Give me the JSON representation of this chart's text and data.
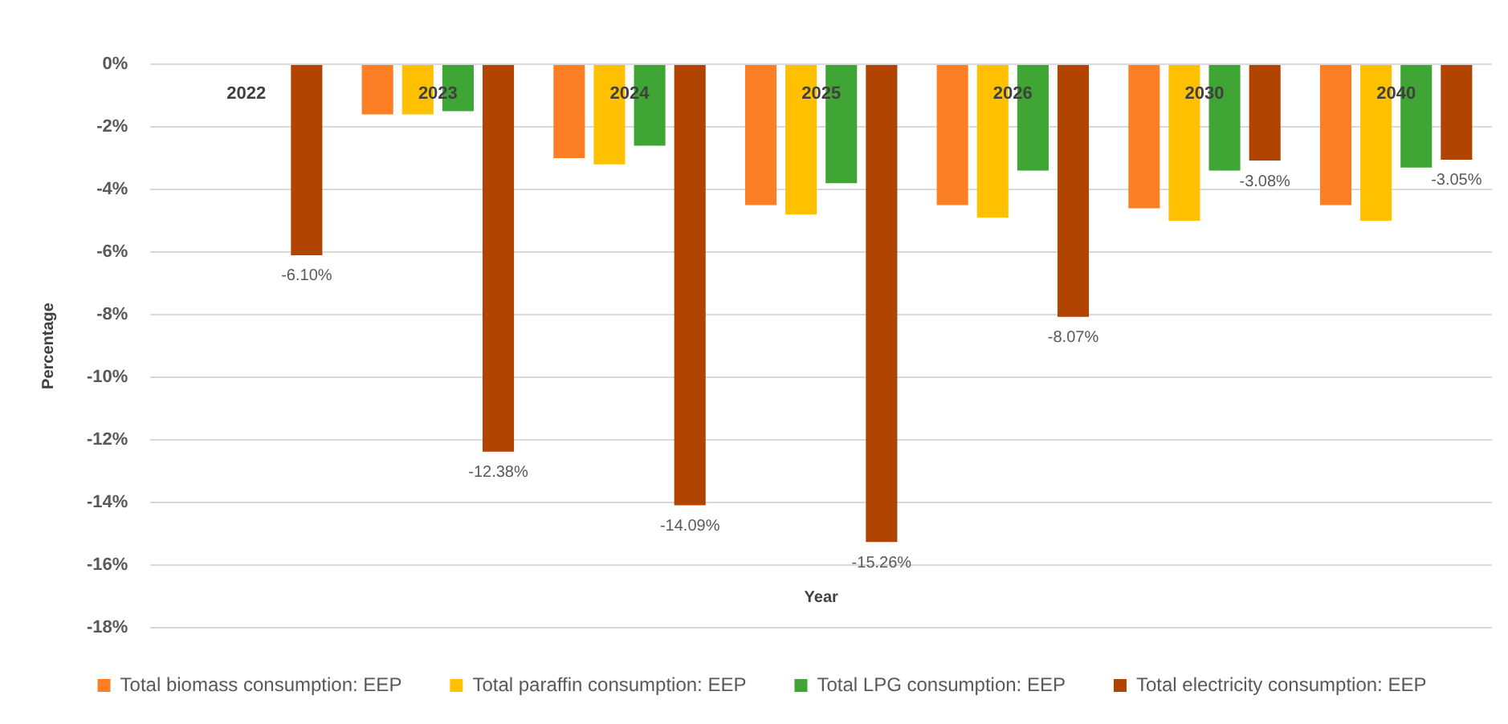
{
  "chart_data": {
    "type": "bar",
    "xlabel": "Year",
    "ylabel": "Percentage",
    "categories": [
      "2022",
      "2023",
      "2024",
      "2025",
      "2026",
      "2030",
      "2040"
    ],
    "series": [
      {
        "name": "Total biomass consumption: EEP",
        "color": "#fd7f25",
        "values": [
          null,
          -1.6,
          -3.0,
          -4.5,
          -4.5,
          -4.6,
          -4.5
        ]
      },
      {
        "name": "Total paraffin consumption: EEP",
        "color": "#ffc000",
        "values": [
          null,
          -1.6,
          -3.2,
          -4.8,
          -4.9,
          -5.0,
          -5.0
        ]
      },
      {
        "name": "Total LPG consumption: EEP",
        "color": "#3fa535",
        "values": [
          null,
          -1.5,
          -2.6,
          -3.8,
          -3.4,
          -3.4,
          -3.3
        ]
      },
      {
        "name": "Total electricity consumption: EEP",
        "color": "#b04400",
        "values": [
          -6.1,
          -12.38,
          -14.09,
          -15.26,
          -8.07,
          -3.08,
          -3.05
        ],
        "value_labels": [
          "-6.10%",
          "-12.38%",
          "-14.09%",
          "-15.26%",
          "-8.07%",
          "-3.08%",
          "-3.05%"
        ]
      }
    ],
    "ylim": [
      -18,
      0
    ],
    "yticks": [
      {
        "value": 0,
        "label": "0%"
      },
      {
        "value": -2,
        "label": "-2%"
      },
      {
        "value": -4,
        "label": "-4%"
      },
      {
        "value": -6,
        "label": "-6%"
      },
      {
        "value": -8,
        "label": "-8%"
      },
      {
        "value": -10,
        "label": "-10%"
      },
      {
        "value": -12,
        "label": "-12%"
      },
      {
        "value": -14,
        "label": "-14%"
      },
      {
        "value": -16,
        "label": "-16%"
      },
      {
        "value": -18,
        "label": "-18%"
      }
    ],
    "grid": "y",
    "legend": "bottom"
  }
}
